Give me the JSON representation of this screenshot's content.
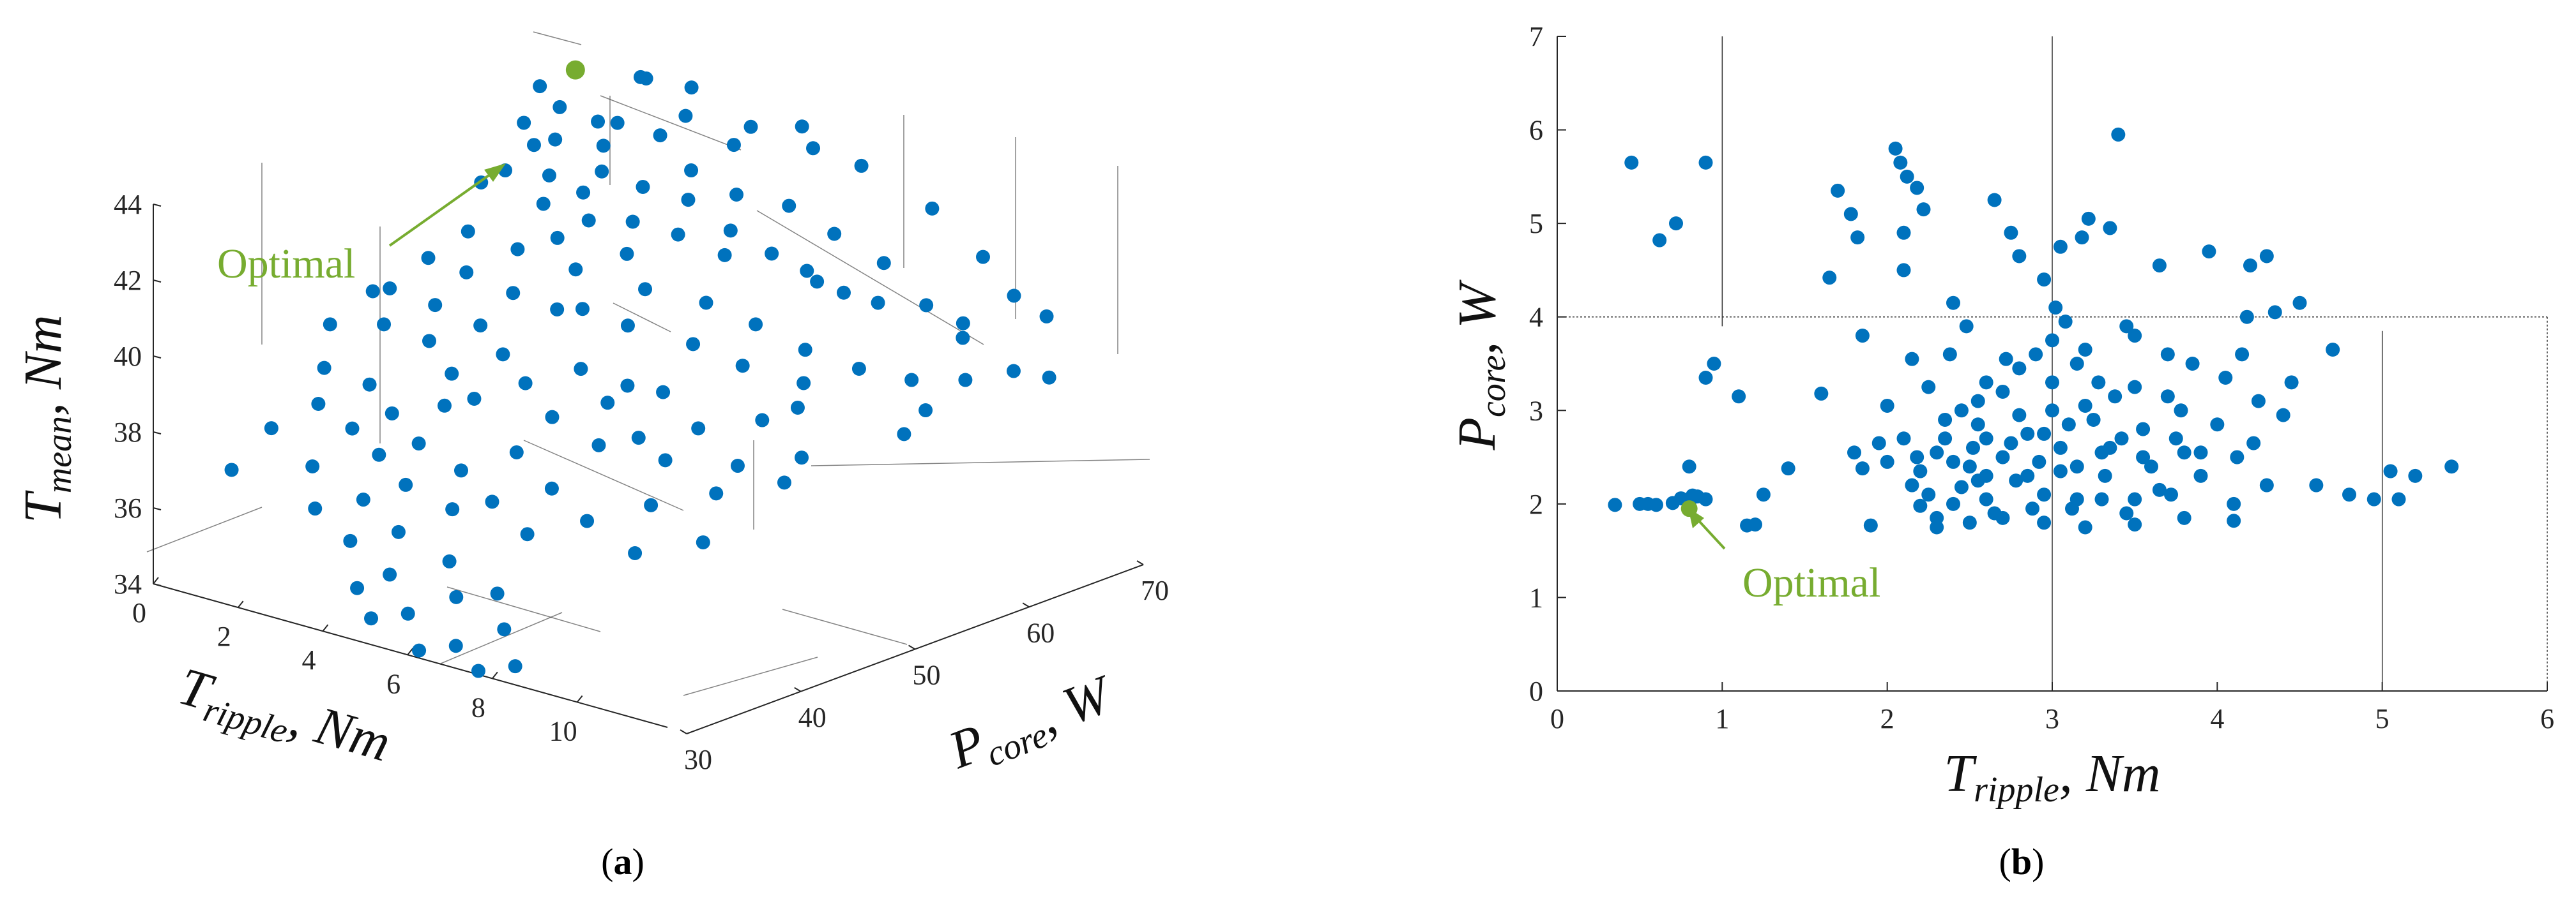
{
  "colors": {
    "point": "#0072bd",
    "optimal": "#77ac30",
    "axis": "#262626",
    "guide": "#333333"
  },
  "panels": {
    "a": {
      "caption_open": "(",
      "caption_letter": "a",
      "caption_close": ")",
      "optimal_label": "Optimal",
      "zlabel_main": "T",
      "zlabel_sub": "mean",
      "zlabel_unit": ", Nm",
      "xlabel_main": "T",
      "xlabel_sub": "ripple",
      "xlabel_unit": ", Nm",
      "ylabel_main": "P",
      "ylabel_sub": "core",
      "ylabel_unit": ", W"
    },
    "b": {
      "caption_open": "(",
      "caption_letter": "b",
      "caption_close": ")",
      "optimal_label": "Optimal",
      "xlabel_main": "T",
      "xlabel_sub": "ripple",
      "xlabel_unit": ", Nm",
      "ylabel_main": "P",
      "ylabel_sub": "core",
      "ylabel_unit": ", W"
    }
  },
  "chart_data": [
    {
      "type": "scatter",
      "title": "",
      "projection": "3d",
      "xlabel": "T_ripple, Nm",
      "ylabel": "P_core, W",
      "zlabel": "T_mean, Nm",
      "xlim": [
        0,
        11
      ],
      "ylim": [
        30,
        70
      ],
      "zlim": [
        34,
        44
      ],
      "xticks": [
        "0",
        "2",
        "4",
        "6",
        "8",
        "10"
      ],
      "yticks": [
        "30",
        "40",
        "50",
        "60",
        "70"
      ],
      "zticks": [
        "34",
        "36",
        "38",
        "40",
        "42",
        "44"
      ],
      "optimal": {
        "x": 0.8,
        "y": 64,
        "z": 44.0,
        "label": "Optimal"
      },
      "points": [
        [
          0.5,
          62,
          43.7
        ],
        [
          0.7,
          63,
          43.1
        ],
        [
          0.9,
          60,
          42.5
        ],
        [
          1.2,
          58,
          43.4
        ],
        [
          1.0,
          55,
          42.1
        ],
        [
          1.4,
          60,
          42.8
        ],
        [
          1.6,
          63,
          43.0
        ],
        [
          1.8,
          58,
          42.2
        ],
        [
          2.0,
          62,
          42.6
        ],
        [
          2.2,
          56,
          41.8
        ],
        [
          2.5,
          60,
          42.3
        ],
        [
          2.8,
          64,
          42.9
        ],
        [
          3.0,
          57,
          41.5
        ],
        [
          3.2,
          61,
          42.0
        ],
        [
          3.5,
          59,
          41.4
        ],
        [
          3.8,
          63,
          42.4
        ],
        [
          4.0,
          66,
          42.8
        ],
        [
          4.3,
          60,
          41.2
        ],
        [
          4.6,
          64,
          41.9
        ],
        [
          5.0,
          62,
          41.3
        ],
        [
          5.3,
          66,
          41.6
        ],
        [
          5.7,
          63,
          40.8
        ],
        [
          6.1,
          67,
          41.0
        ],
        [
          6.5,
          64,
          40.2
        ],
        [
          7.0,
          68,
          40.4
        ],
        [
          7.4,
          66,
          39.7
        ],
        [
          8.0,
          68,
          39.6
        ],
        [
          8.6,
          69,
          39.2
        ],
        [
          1.5,
          52,
          41.3
        ],
        [
          2.0,
          50,
          40.6
        ],
        [
          2.4,
          53,
          41.0
        ],
        [
          2.8,
          55,
          41.2
        ],
        [
          3.1,
          50,
          40.4
        ],
        [
          3.5,
          54,
          40.7
        ],
        [
          3.9,
          57,
          40.9
        ],
        [
          4.2,
          52,
          40.1
        ],
        [
          4.6,
          56,
          40.3
        ],
        [
          5.0,
          53,
          39.8
        ],
        [
          5.5,
          58,
          40.0
        ],
        [
          6.0,
          55,
          39.4
        ],
        [
          6.4,
          59,
          39.6
        ],
        [
          6.9,
          56,
          39.0
        ],
        [
          7.3,
          60,
          39.1
        ],
        [
          7.8,
          58,
          38.6
        ],
        [
          8.3,
          61,
          38.8
        ],
        [
          9.0,
          63,
          38.5
        ],
        [
          9.6,
          62,
          38.0
        ],
        [
          1.0,
          47,
          40.2
        ],
        [
          1.4,
          45,
          39.6
        ],
        [
          1.8,
          48,
          39.9
        ],
        [
          2.2,
          46,
          39.3
        ],
        [
          2.6,
          49,
          39.5
        ],
        [
          3.0,
          45,
          38.8
        ],
        [
          3.4,
          48,
          39.1
        ],
        [
          3.8,
          44,
          38.5
        ],
        [
          4.2,
          47,
          38.7
        ],
        [
          4.7,
          50,
          38.9
        ],
        [
          5.1,
          46,
          38.2
        ],
        [
          5.6,
          49,
          38.4
        ],
        [
          6.1,
          52,
          38.5
        ],
        [
          6.6,
          48,
          37.9
        ],
        [
          7.2,
          51,
          38.0
        ],
        [
          7.9,
          54,
          38.1
        ],
        [
          8.4,
          50,
          37.5
        ],
        [
          9.1,
          53,
          37.6
        ],
        [
          0.8,
          42,
          38.6
        ],
        [
          1.2,
          40,
          38.0
        ],
        [
          1.6,
          43,
          38.3
        ],
        [
          2.0,
          40,
          37.6
        ],
        [
          2.4,
          42,
          37.9
        ],
        [
          2.9,
          39,
          37.3
        ],
        [
          3.3,
          41,
          37.5
        ],
        [
          3.8,
          38,
          36.9
        ],
        [
          4.3,
          41,
          37.1
        ],
        [
          4.8,
          44,
          37.4
        ],
        [
          5.3,
          40,
          36.7
        ],
        [
          5.9,
          43,
          36.9
        ],
        [
          6.4,
          39,
          36.3
        ],
        [
          7.0,
          42,
          36.5
        ],
        [
          7.7,
          45,
          36.8
        ],
        [
          8.4,
          41,
          36.2
        ],
        [
          9.2,
          44,
          36.4
        ],
        [
          1.6,
          38,
          36.7
        ],
        [
          2.2,
          36,
          36.0
        ],
        [
          2.8,
          38,
          36.2
        ],
        [
          3.3,
          35,
          35.6
        ],
        [
          3.9,
          37,
          35.8
        ],
        [
          4.5,
          34,
          35.2
        ],
        [
          5.1,
          37,
          35.4
        ],
        [
          5.8,
          35,
          34.9
        ],
        [
          6.5,
          36,
          35.1
        ],
        [
          7.2,
          34,
          34.6
        ],
        [
          4.0,
          33,
          34.8
        ],
        [
          4.6,
          32,
          34.3
        ],
        [
          5.2,
          33,
          34.5
        ],
        [
          6.0,
          31,
          34.0
        ],
        [
          6.6,
          32,
          34.2
        ],
        [
          7.4,
          31,
          33.9
        ],
        [
          8.0,
          32,
          34.1
        ],
        [
          2.6,
          61,
          43.5
        ],
        [
          3.4,
          64,
          43.6
        ],
        [
          4.4,
          66,
          43.4
        ],
        [
          5.6,
          67,
          43.1
        ],
        [
          3.0,
          66,
          44.0
        ],
        [
          2.2,
          65,
          44.1
        ],
        [
          1.8,
          66,
          43.9
        ],
        [
          4.8,
          69,
          43.2
        ],
        [
          6.2,
          69,
          42.6
        ],
        [
          7.6,
          70,
          41.8
        ],
        [
          8.8,
          70,
          40.9
        ],
        [
          9.8,
          69,
          40.3
        ],
        [
          10.3,
          70,
          39.8
        ],
        [
          9.4,
          66,
          39.4
        ],
        [
          10.0,
          64,
          38.7
        ],
        [
          10.6,
          66,
          38.9
        ],
        [
          10.9,
          68,
          38.6
        ],
        [
          6.8,
          62,
          40.8
        ],
        [
          7.4,
          63,
          40.3
        ],
        [
          5.4,
          60,
          41.0
        ],
        [
          4.0,
          62,
          41.8
        ],
        [
          2.6,
          58,
          42.0
        ],
        [
          1.3,
          56,
          42.4
        ],
        [
          3.6,
          52,
          39.9
        ],
        [
          5.8,
          50,
          38.8
        ],
        [
          7.5,
          47,
          37.7
        ],
        [
          8.7,
          47,
          37.2
        ],
        [
          9.5,
          50,
          37.4
        ],
        [
          1.1,
          50,
          40.7
        ],
        [
          0.6,
          47,
          40.0
        ],
        [
          0.4,
          44,
          39.4
        ],
        [
          0.9,
          37,
          37.6
        ],
        [
          0.5,
          35,
          36.6
        ],
        [
          3.1,
          44,
          38.1
        ],
        [
          4.9,
          38,
          36.6
        ],
        [
          6.2,
          46,
          37.8
        ],
        [
          8.2,
          56,
          38.3
        ],
        [
          9.9,
          59,
          37.8
        ]
      ]
    },
    {
      "type": "scatter",
      "title": "",
      "xlabel": "T_ripple, Nm",
      "ylabel": "P_core, W",
      "xlim": [
        0,
        6
      ],
      "ylim": [
        0,
        7
      ],
      "xticks": [
        "0",
        "1",
        "2",
        "3",
        "4",
        "5",
        "6"
      ],
      "yticks": [
        "0",
        "1",
        "2",
        "3",
        "4",
        "5",
        "6",
        "7"
      ],
      "reference_lines": {
        "horizontal_y": 4,
        "vertical_x": [
          1,
          3,
          5
        ]
      },
      "optimal": {
        "x": 0.8,
        "y": 1.95,
        "label": "Optimal"
      },
      "points": [
        [
          0.35,
          1.99
        ],
        [
          0.5,
          2.0
        ],
        [
          0.55,
          2.0
        ],
        [
          0.6,
          1.99
        ],
        [
          0.7,
          2.01
        ],
        [
          0.75,
          2.06
        ],
        [
          0.8,
          2.0
        ],
        [
          0.82,
          2.09
        ],
        [
          0.85,
          2.08
        ],
        [
          0.9,
          2.05
        ],
        [
          0.8,
          2.4
        ],
        [
          0.9,
          3.35
        ],
        [
          0.95,
          3.5
        ],
        [
          1.1,
          3.15
        ],
        [
          1.15,
          1.77
        ],
        [
          1.2,
          1.78
        ],
        [
          1.25,
          2.1
        ],
        [
          1.4,
          2.38
        ],
        [
          1.6,
          3.18
        ],
        [
          0.62,
          4.82
        ],
        [
          0.72,
          5.0
        ],
        [
          0.45,
          5.65
        ],
        [
          0.9,
          5.65
        ],
        [
          1.65,
          4.42
        ],
        [
          1.7,
          5.35
        ],
        [
          1.78,
          5.1
        ],
        [
          1.82,
          4.85
        ],
        [
          1.85,
          3.8
        ],
        [
          1.8,
          2.55
        ],
        [
          1.85,
          2.38
        ],
        [
          1.9,
          1.77
        ],
        [
          1.95,
          2.65
        ],
        [
          2.0,
          2.45
        ],
        [
          2.05,
          5.8
        ],
        [
          2.08,
          5.65
        ],
        [
          2.12,
          5.5
        ],
        [
          2.18,
          5.38
        ],
        [
          2.22,
          5.15
        ],
        [
          2.1,
          4.9
        ],
        [
          2.1,
          4.5
        ],
        [
          2.15,
          3.55
        ],
        [
          2.18,
          2.5
        ],
        [
          2.2,
          2.35
        ],
        [
          2.2,
          1.98
        ],
        [
          2.25,
          2.1
        ],
        [
          2.3,
          1.85
        ],
        [
          2.3,
          2.55
        ],
        [
          2.35,
          2.7
        ],
        [
          2.38,
          3.6
        ],
        [
          2.4,
          4.15
        ],
        [
          2.45,
          2.18
        ],
        [
          2.48,
          3.9
        ],
        [
          2.5,
          2.4
        ],
        [
          2.52,
          2.6
        ],
        [
          2.55,
          2.25
        ],
        [
          2.55,
          2.85
        ],
        [
          2.6,
          2.05
        ],
        [
          2.6,
          2.7
        ],
        [
          2.65,
          5.25
        ],
        [
          2.65,
          1.9
        ],
        [
          2.7,
          3.2
        ],
        [
          2.7,
          2.5
        ],
        [
          2.72,
          3.55
        ],
        [
          2.75,
          4.9
        ],
        [
          2.78,
          2.25
        ],
        [
          2.8,
          4.65
        ],
        [
          2.8,
          2.95
        ],
        [
          2.85,
          2.75
        ],
        [
          2.88,
          1.95
        ],
        [
          2.9,
          3.6
        ],
        [
          2.92,
          2.45
        ],
        [
          2.95,
          4.4
        ],
        [
          2.95,
          2.1
        ],
        [
          3.0,
          3.75
        ],
        [
          3.0,
          3.0
        ],
        [
          3.02,
          4.1
        ],
        [
          3.05,
          4.75
        ],
        [
          3.05,
          2.6
        ],
        [
          3.08,
          3.95
        ],
        [
          3.1,
          2.85
        ],
        [
          3.12,
          1.95
        ],
        [
          3.15,
          2.05
        ],
        [
          3.15,
          3.5
        ],
        [
          3.18,
          4.85
        ],
        [
          3.2,
          3.05
        ],
        [
          3.22,
          5.05
        ],
        [
          3.25,
          2.9
        ],
        [
          3.28,
          3.3
        ],
        [
          3.3,
          2.55
        ],
        [
          3.32,
          2.3
        ],
        [
          3.35,
          4.95
        ],
        [
          3.38,
          3.15
        ],
        [
          3.4,
          5.95
        ],
        [
          3.42,
          2.7
        ],
        [
          3.45,
          3.9
        ],
        [
          3.5,
          2.05
        ],
        [
          3.5,
          3.25
        ],
        [
          3.55,
          2.8
        ],
        [
          3.6,
          2.4
        ],
        [
          3.65,
          4.55
        ],
        [
          3.7,
          3.6
        ],
        [
          3.72,
          2.1
        ],
        [
          3.78,
          3.0
        ],
        [
          3.8,
          2.55
        ],
        [
          3.85,
          3.5
        ],
        [
          3.9,
          2.3
        ],
        [
          3.95,
          4.7
        ],
        [
          4.0,
          2.85
        ],
        [
          4.05,
          3.35
        ],
        [
          4.1,
          2.0
        ],
        [
          4.12,
          2.5
        ],
        [
          4.15,
          3.6
        ],
        [
          4.18,
          4.0
        ],
        [
          4.2,
          4.55
        ],
        [
          4.22,
          2.65
        ],
        [
          4.25,
          3.1
        ],
        [
          4.3,
          4.65
        ],
        [
          4.3,
          2.2
        ],
        [
          4.35,
          4.05
        ],
        [
          4.4,
          2.95
        ],
        [
          4.45,
          3.3
        ],
        [
          4.5,
          4.15
        ],
        [
          4.6,
          2.2
        ],
        [
          4.7,
          3.65
        ],
        [
          4.8,
          2.1
        ],
        [
          4.95,
          2.05
        ],
        [
          5.05,
          2.35
        ],
        [
          5.1,
          2.05
        ],
        [
          5.2,
          2.3
        ],
        [
          5.42,
          2.4
        ],
        [
          2.3,
          1.75
        ],
        [
          2.4,
          2.0
        ],
        [
          2.5,
          1.8
        ],
        [
          2.7,
          1.85
        ],
        [
          2.95,
          1.8
        ],
        [
          3.2,
          1.75
        ],
        [
          3.5,
          1.78
        ],
        [
          3.8,
          1.85
        ],
        [
          4.1,
          1.82
        ],
        [
          2.0,
          3.05
        ],
        [
          2.25,
          3.25
        ],
        [
          2.45,
          3.0
        ],
        [
          2.6,
          3.3
        ],
        [
          2.8,
          3.45
        ],
        [
          3.0,
          3.3
        ],
        [
          3.2,
          3.65
        ],
        [
          3.5,
          3.8
        ],
        [
          3.7,
          3.15
        ],
        [
          2.1,
          2.7
        ],
        [
          2.35,
          2.9
        ],
        [
          2.55,
          3.1
        ],
        [
          2.75,
          2.65
        ],
        [
          2.95,
          2.75
        ],
        [
          3.15,
          2.4
        ],
        [
          3.35,
          2.6
        ],
        [
          3.55,
          2.5
        ],
        [
          3.75,
          2.7
        ],
        [
          2.15,
          2.2
        ],
        [
          2.4,
          2.45
        ],
        [
          2.6,
          2.3
        ],
        [
          2.85,
          2.3
        ],
        [
          3.05,
          2.35
        ],
        [
          3.3,
          2.05
        ],
        [
          3.45,
          1.9
        ],
        [
          3.65,
          2.15
        ],
        [
          3.9,
          2.55
        ]
      ]
    }
  ]
}
